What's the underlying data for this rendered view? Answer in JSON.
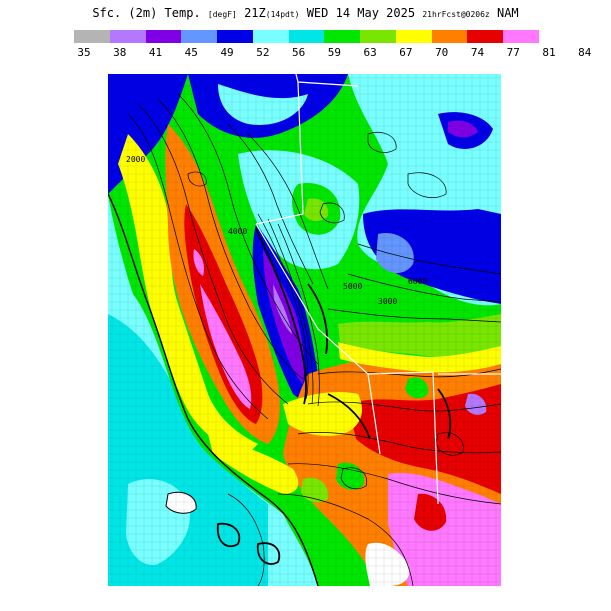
{
  "title": {
    "main": "Sfc. (2m) Temp.",
    "unit": "[degF]",
    "time": "21Z",
    "local": "(14pdt)",
    "date": "WED 14 May 2025",
    "fcst": "21hrFcst@0206z",
    "model": "NAM"
  },
  "legend": {
    "ticks": [
      "35",
      "38",
      "41",
      "45",
      "49",
      "52",
      "56",
      "59",
      "63",
      "67",
      "70",
      "74",
      "77",
      "81",
      "84"
    ],
    "colors": [
      "#b4b4b4",
      "#b478ff",
      "#8000e6",
      "#6496ff",
      "#0000e6",
      "#78ffff",
      "#00e6e6",
      "#00e600",
      "#78e600",
      "#ffff00",
      "#ff8000",
      "#e60000",
      "#ff78ff"
    ]
  },
  "map": {
    "contour_labels": [
      "2000",
      "3000",
      "4000",
      "5000",
      "6000"
    ]
  },
  "colors": {
    "ocean": "#78ffff",
    "ocean_deep": "#00e6e6"
  }
}
